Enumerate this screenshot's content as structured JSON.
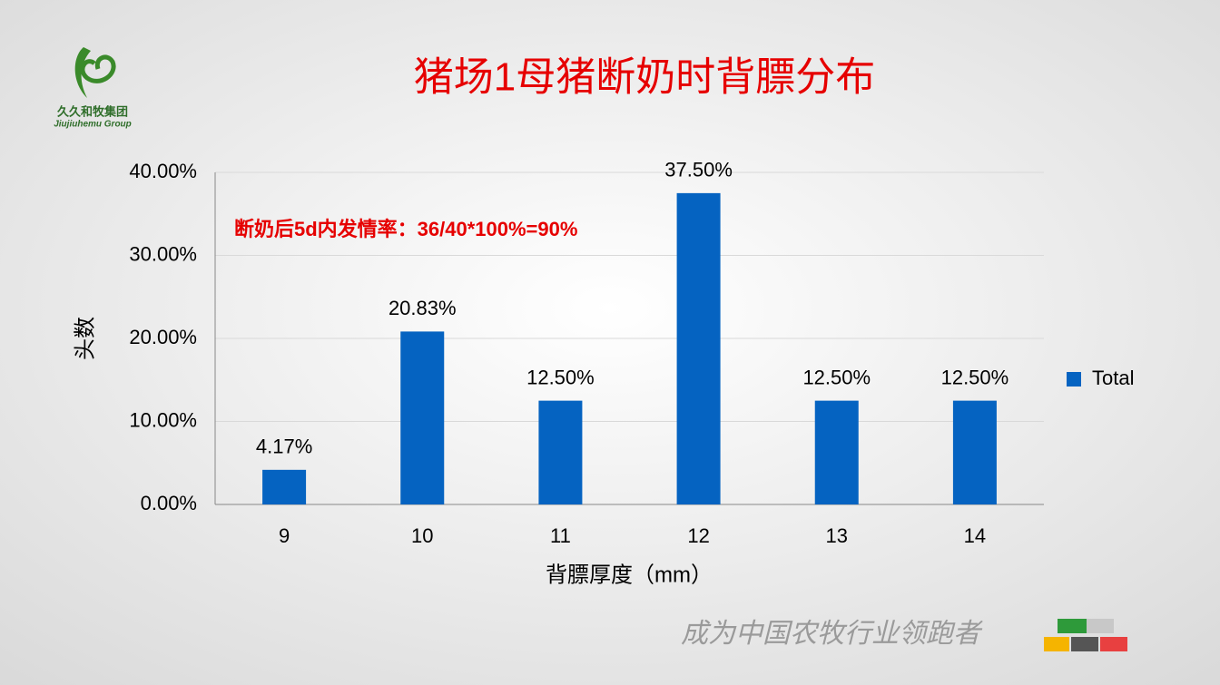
{
  "logo": {
    "name": "久久和牧集团",
    "subtitle": "Jiujiuhemu Group"
  },
  "slogan": "成为中国农牧行业领跑者",
  "chart_data": {
    "type": "bar",
    "title": "猪场1母猪断奶时背膘分布",
    "annotation": "断奶后5d内发情率：36/40*100%=90%",
    "x_label": "背膘厚度（mm）",
    "y_label": "头数",
    "categories": [
      "9",
      "10",
      "11",
      "12",
      "13",
      "14"
    ],
    "series": [
      {
        "name": "Total",
        "color": "#0563c1",
        "values": [
          4.17,
          20.83,
          12.5,
          37.5,
          12.5,
          12.5
        ],
        "value_labels": [
          "4.17%",
          "20.83%",
          "12.50%",
          "37.50%",
          "12.50%",
          "12.50%"
        ]
      }
    ],
    "ylim": [
      0,
      40
    ],
    "yticks": [
      {
        "value": 0,
        "label": "0.00%"
      },
      {
        "value": 10,
        "label": "10.00%"
      },
      {
        "value": 20,
        "label": "20.00%"
      },
      {
        "value": 30,
        "label": "30.00%"
      },
      {
        "value": 40,
        "label": "40.00%"
      }
    ],
    "grid": true,
    "legend": "right"
  }
}
